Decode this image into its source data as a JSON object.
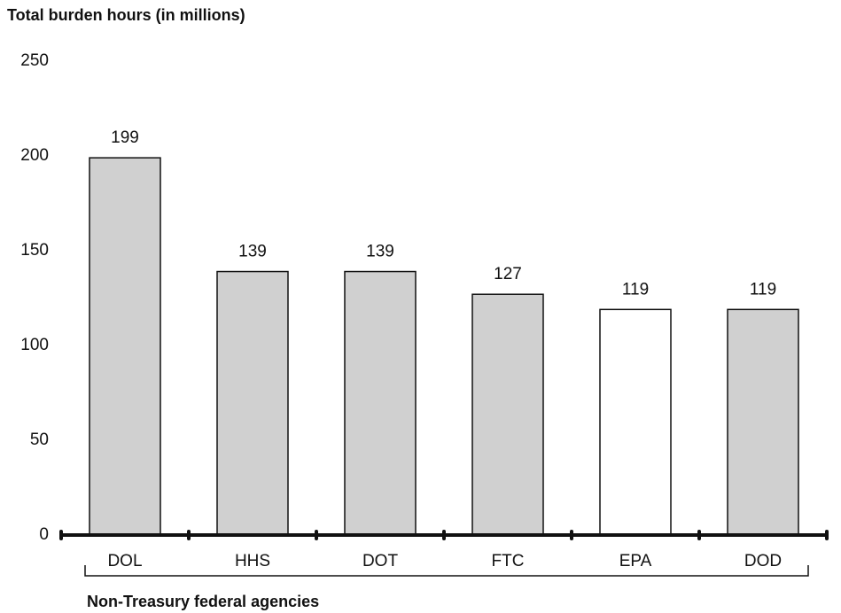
{
  "chart_data": {
    "type": "bar",
    "title": "Total burden hours (in millions)",
    "x_label": "Non-Treasury federal agencies",
    "categories": [
      "DOL",
      "HHS",
      "DOT",
      "FTC",
      "EPA",
      "DOD"
    ],
    "values": [
      199,
      139,
      139,
      127,
      119,
      119
    ],
    "colors": [
      "#d0d0d0",
      "#d0d0d0",
      "#d0d0d0",
      "#d0d0d0",
      "#ffffff",
      "#d0d0d0"
    ],
    "ylim": [
      0,
      250
    ],
    "yticks": [
      0,
      50,
      100,
      150,
      200,
      250
    ],
    "grid": false
  }
}
